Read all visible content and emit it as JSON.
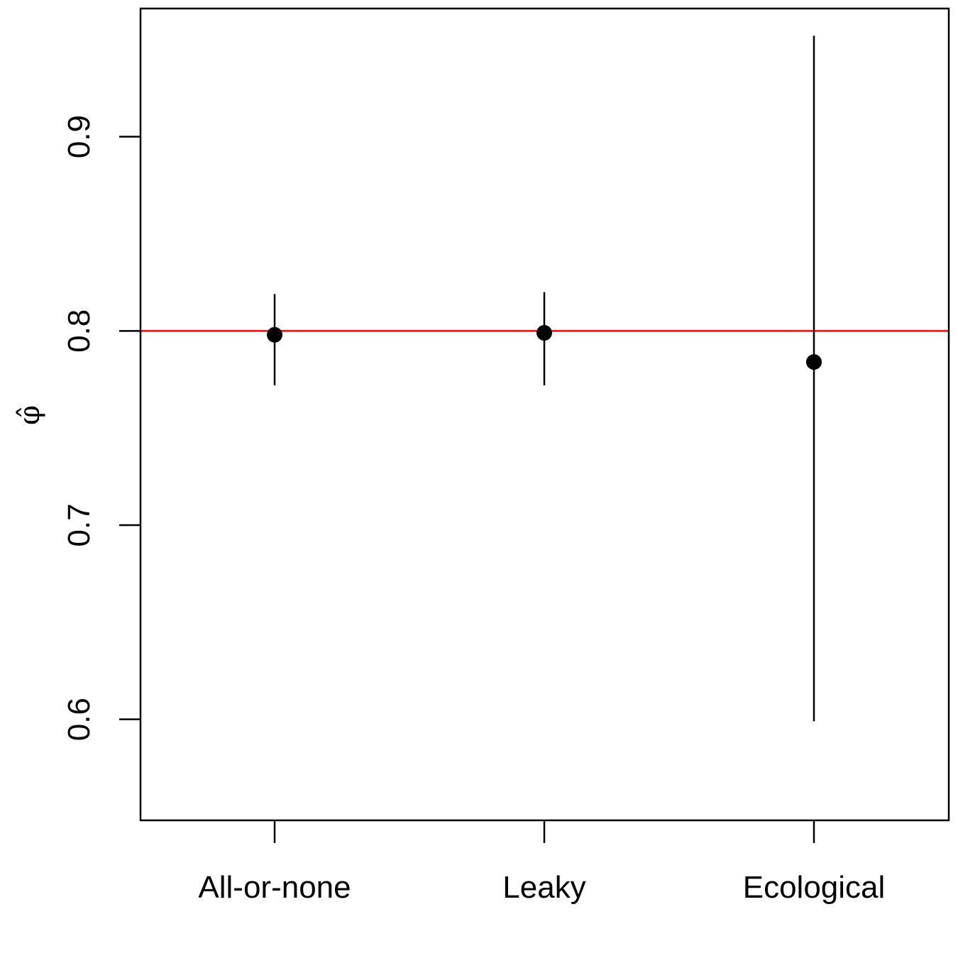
{
  "chart_data": {
    "type": "scatter",
    "title": "",
    "xlabel": "",
    "ylabel": "φ̂",
    "categories": [
      "All-or-none",
      "Leaky",
      "Ecological"
    ],
    "y_ticks": [
      "0.6",
      "0.7",
      "0.8",
      "0.9"
    ],
    "ylim": [
      0.548,
      0.966
    ],
    "series": [
      {
        "points": [
          {
            "category": "All-or-none",
            "estimate": 0.798,
            "lower": 0.772,
            "upper": 0.819
          },
          {
            "category": "Leaky",
            "estimate": 0.799,
            "lower": 0.772,
            "upper": 0.82
          },
          {
            "category": "Ecological",
            "estimate": 0.784,
            "lower": 0.599,
            "upper": 0.952
          }
        ]
      }
    ],
    "reference_line": {
      "y": 0.8,
      "color": "#ff0000"
    },
    "grid": false,
    "legend": "none",
    "colors": {
      "points": "#000000",
      "error_bars": "#000000",
      "reference": "#ff0000"
    }
  }
}
